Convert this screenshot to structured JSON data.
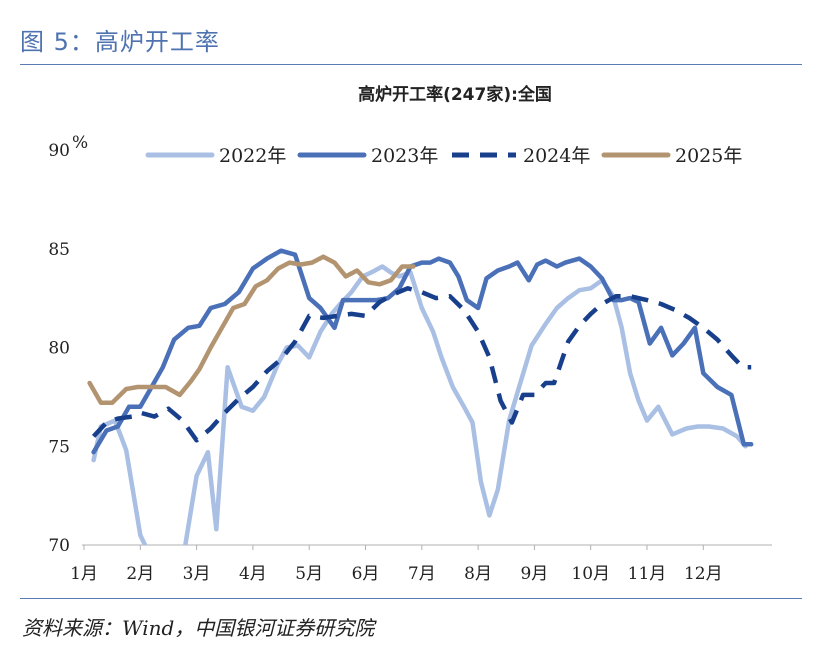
{
  "figure": {
    "title": "图 5：高炉开工率",
    "source": "资料来源：Wind，中国银河证券研究院",
    "accent_color": "#4f73b0"
  },
  "chart_data": {
    "type": "line",
    "title": "高炉开工率(247家):全国",
    "xlabel": "",
    "ylabel": "",
    "y_unit": "%",
    "ylim": [
      70,
      90
    ],
    "yticks": [
      "90",
      "85",
      "80",
      "75",
      "70"
    ],
    "xlim": [
      1,
      12.85
    ],
    "xticks": [
      "1月",
      "2月",
      "3月",
      "4月",
      "5月",
      "6月",
      "7月",
      "8月",
      "9月",
      "10月",
      "11月",
      "12月"
    ],
    "grid": false,
    "legend_position": "top",
    "series": [
      {
        "name": "2022年",
        "color": "#a9bfe4",
        "dash": "solid",
        "x": [
          1.17,
          1.3,
          1.55,
          1.75,
          2.0,
          2.25,
          2.4,
          2.6,
          2.8,
          3.0,
          3.2,
          3.35,
          3.55,
          3.8,
          4.0,
          4.2,
          4.45,
          4.6,
          4.8,
          5.0,
          5.2,
          5.4,
          5.55,
          5.75,
          5.95,
          6.1,
          6.3,
          6.45,
          6.6,
          6.8,
          7.0,
          7.2,
          7.35,
          7.55,
          7.75,
          7.9,
          8.05,
          8.2,
          8.35,
          8.55,
          8.75,
          8.95,
          9.2,
          9.4,
          9.6,
          9.8,
          10.0,
          10.2,
          10.4,
          10.55,
          10.7,
          10.85,
          11.0,
          11.2,
          11.45,
          11.7,
          11.9,
          12.1,
          12.35,
          12.6,
          12.75
        ],
        "y": [
          74.3,
          76.0,
          76.3,
          74.8,
          70.5,
          69.0,
          69.0,
          69.0,
          70.0,
          73.5,
          74.7,
          70.8,
          79.0,
          77.0,
          76.8,
          77.5,
          79.2,
          80.0,
          80.1,
          79.5,
          80.8,
          81.7,
          82.2,
          82.8,
          83.6,
          83.8,
          84.1,
          83.8,
          83.6,
          83.8,
          82.0,
          80.8,
          79.5,
          78.0,
          77.0,
          76.2,
          73.2,
          71.5,
          72.8,
          76.3,
          78.2,
          80.1,
          81.2,
          82.0,
          82.5,
          82.9,
          83.0,
          83.4,
          82.6,
          81.0,
          78.7,
          77.3,
          76.3,
          77.0,
          75.6,
          75.9,
          76.0,
          76.0,
          75.9,
          75.5,
          75.0
        ]
      },
      {
        "name": "2023年",
        "color": "#4a70b8",
        "dash": "solid",
        "x": [
          1.17,
          1.4,
          1.6,
          1.8,
          2.0,
          2.2,
          2.4,
          2.6,
          2.85,
          3.05,
          3.25,
          3.5,
          3.75,
          4.0,
          4.25,
          4.5,
          4.75,
          5.0,
          5.2,
          5.45,
          5.6,
          5.8,
          6.0,
          6.2,
          6.4,
          6.6,
          6.8,
          7.0,
          7.15,
          7.3,
          7.5,
          7.65,
          7.8,
          8.0,
          8.15,
          8.35,
          8.55,
          8.7,
          8.9,
          9.05,
          9.2,
          9.4,
          9.55,
          9.8,
          10.0,
          10.2,
          10.4,
          10.55,
          10.7,
          10.85,
          11.05,
          11.25,
          11.45,
          11.65,
          11.85,
          12.0,
          12.25,
          12.5,
          12.72,
          12.85
        ],
        "y": [
          74.7,
          75.8,
          76.0,
          77.0,
          77.0,
          78.0,
          79.0,
          80.4,
          81.0,
          81.1,
          82.0,
          82.2,
          82.8,
          84.0,
          84.5,
          84.9,
          84.7,
          82.5,
          82.0,
          81.0,
          82.4,
          82.4,
          82.4,
          82.4,
          82.5,
          83.0,
          84.1,
          84.3,
          84.3,
          84.5,
          84.3,
          83.6,
          82.4,
          82.0,
          83.5,
          83.9,
          84.1,
          84.3,
          83.4,
          84.2,
          84.4,
          84.1,
          84.3,
          84.5,
          84.1,
          83.5,
          82.4,
          82.4,
          82.5,
          82.3,
          80.2,
          81.0,
          79.6,
          80.2,
          81.0,
          78.7,
          78.0,
          77.6,
          75.1,
          75.1
        ]
      },
      {
        "name": "2024年",
        "color": "#173f8c",
        "dash": "dashed",
        "x": [
          1.17,
          1.4,
          1.6,
          1.85,
          2.0,
          2.25,
          2.5,
          2.75,
          3.0,
          3.25,
          3.5,
          3.75,
          4.0,
          4.25,
          4.5,
          4.75,
          5.0,
          5.25,
          5.5,
          5.75,
          6.0,
          6.25,
          6.5,
          6.75,
          7.0,
          7.25,
          7.5,
          7.75,
          8.0,
          8.2,
          8.4,
          8.6,
          8.8,
          9.0,
          9.2,
          9.35,
          9.6,
          9.8,
          10.0,
          10.2,
          10.45,
          10.7,
          11.0,
          11.25,
          11.5,
          11.75,
          12.0,
          12.25,
          12.5,
          12.7,
          12.85
        ],
        "y": [
          75.5,
          76.2,
          76.4,
          76.5,
          76.7,
          76.5,
          76.9,
          76.3,
          75.3,
          75.9,
          76.7,
          77.4,
          78.0,
          78.8,
          79.4,
          80.3,
          81.6,
          81.5,
          81.6,
          81.7,
          81.6,
          82.3,
          82.7,
          83.0,
          82.8,
          82.5,
          82.6,
          81.9,
          80.8,
          79.5,
          77.3,
          76.2,
          77.6,
          77.6,
          78.2,
          78.2,
          80.3,
          81.1,
          81.7,
          82.2,
          82.6,
          82.6,
          82.4,
          82.2,
          81.9,
          81.5,
          81.0,
          80.4,
          79.6,
          79.0,
          79.0
        ]
      },
      {
        "name": "2025年",
        "color": "#b39470",
        "dash": "solid",
        "x": [
          1.1,
          1.3,
          1.5,
          1.75,
          1.95,
          2.2,
          2.45,
          2.7,
          2.9,
          3.05,
          3.25,
          3.45,
          3.65,
          3.85,
          4.05,
          4.25,
          4.45,
          4.65,
          4.85,
          5.05,
          5.25,
          5.45,
          5.65,
          5.85,
          6.05,
          6.25,
          6.45,
          6.65,
          6.85
        ],
        "y": [
          78.2,
          77.2,
          77.2,
          77.9,
          78.0,
          78.0,
          78.0,
          77.6,
          78.3,
          78.9,
          80.0,
          81.0,
          82.0,
          82.2,
          83.1,
          83.4,
          84.0,
          84.3,
          84.2,
          84.3,
          84.6,
          84.3,
          83.6,
          83.9,
          83.3,
          83.2,
          83.4,
          84.1,
          84.1
        ]
      }
    ]
  }
}
